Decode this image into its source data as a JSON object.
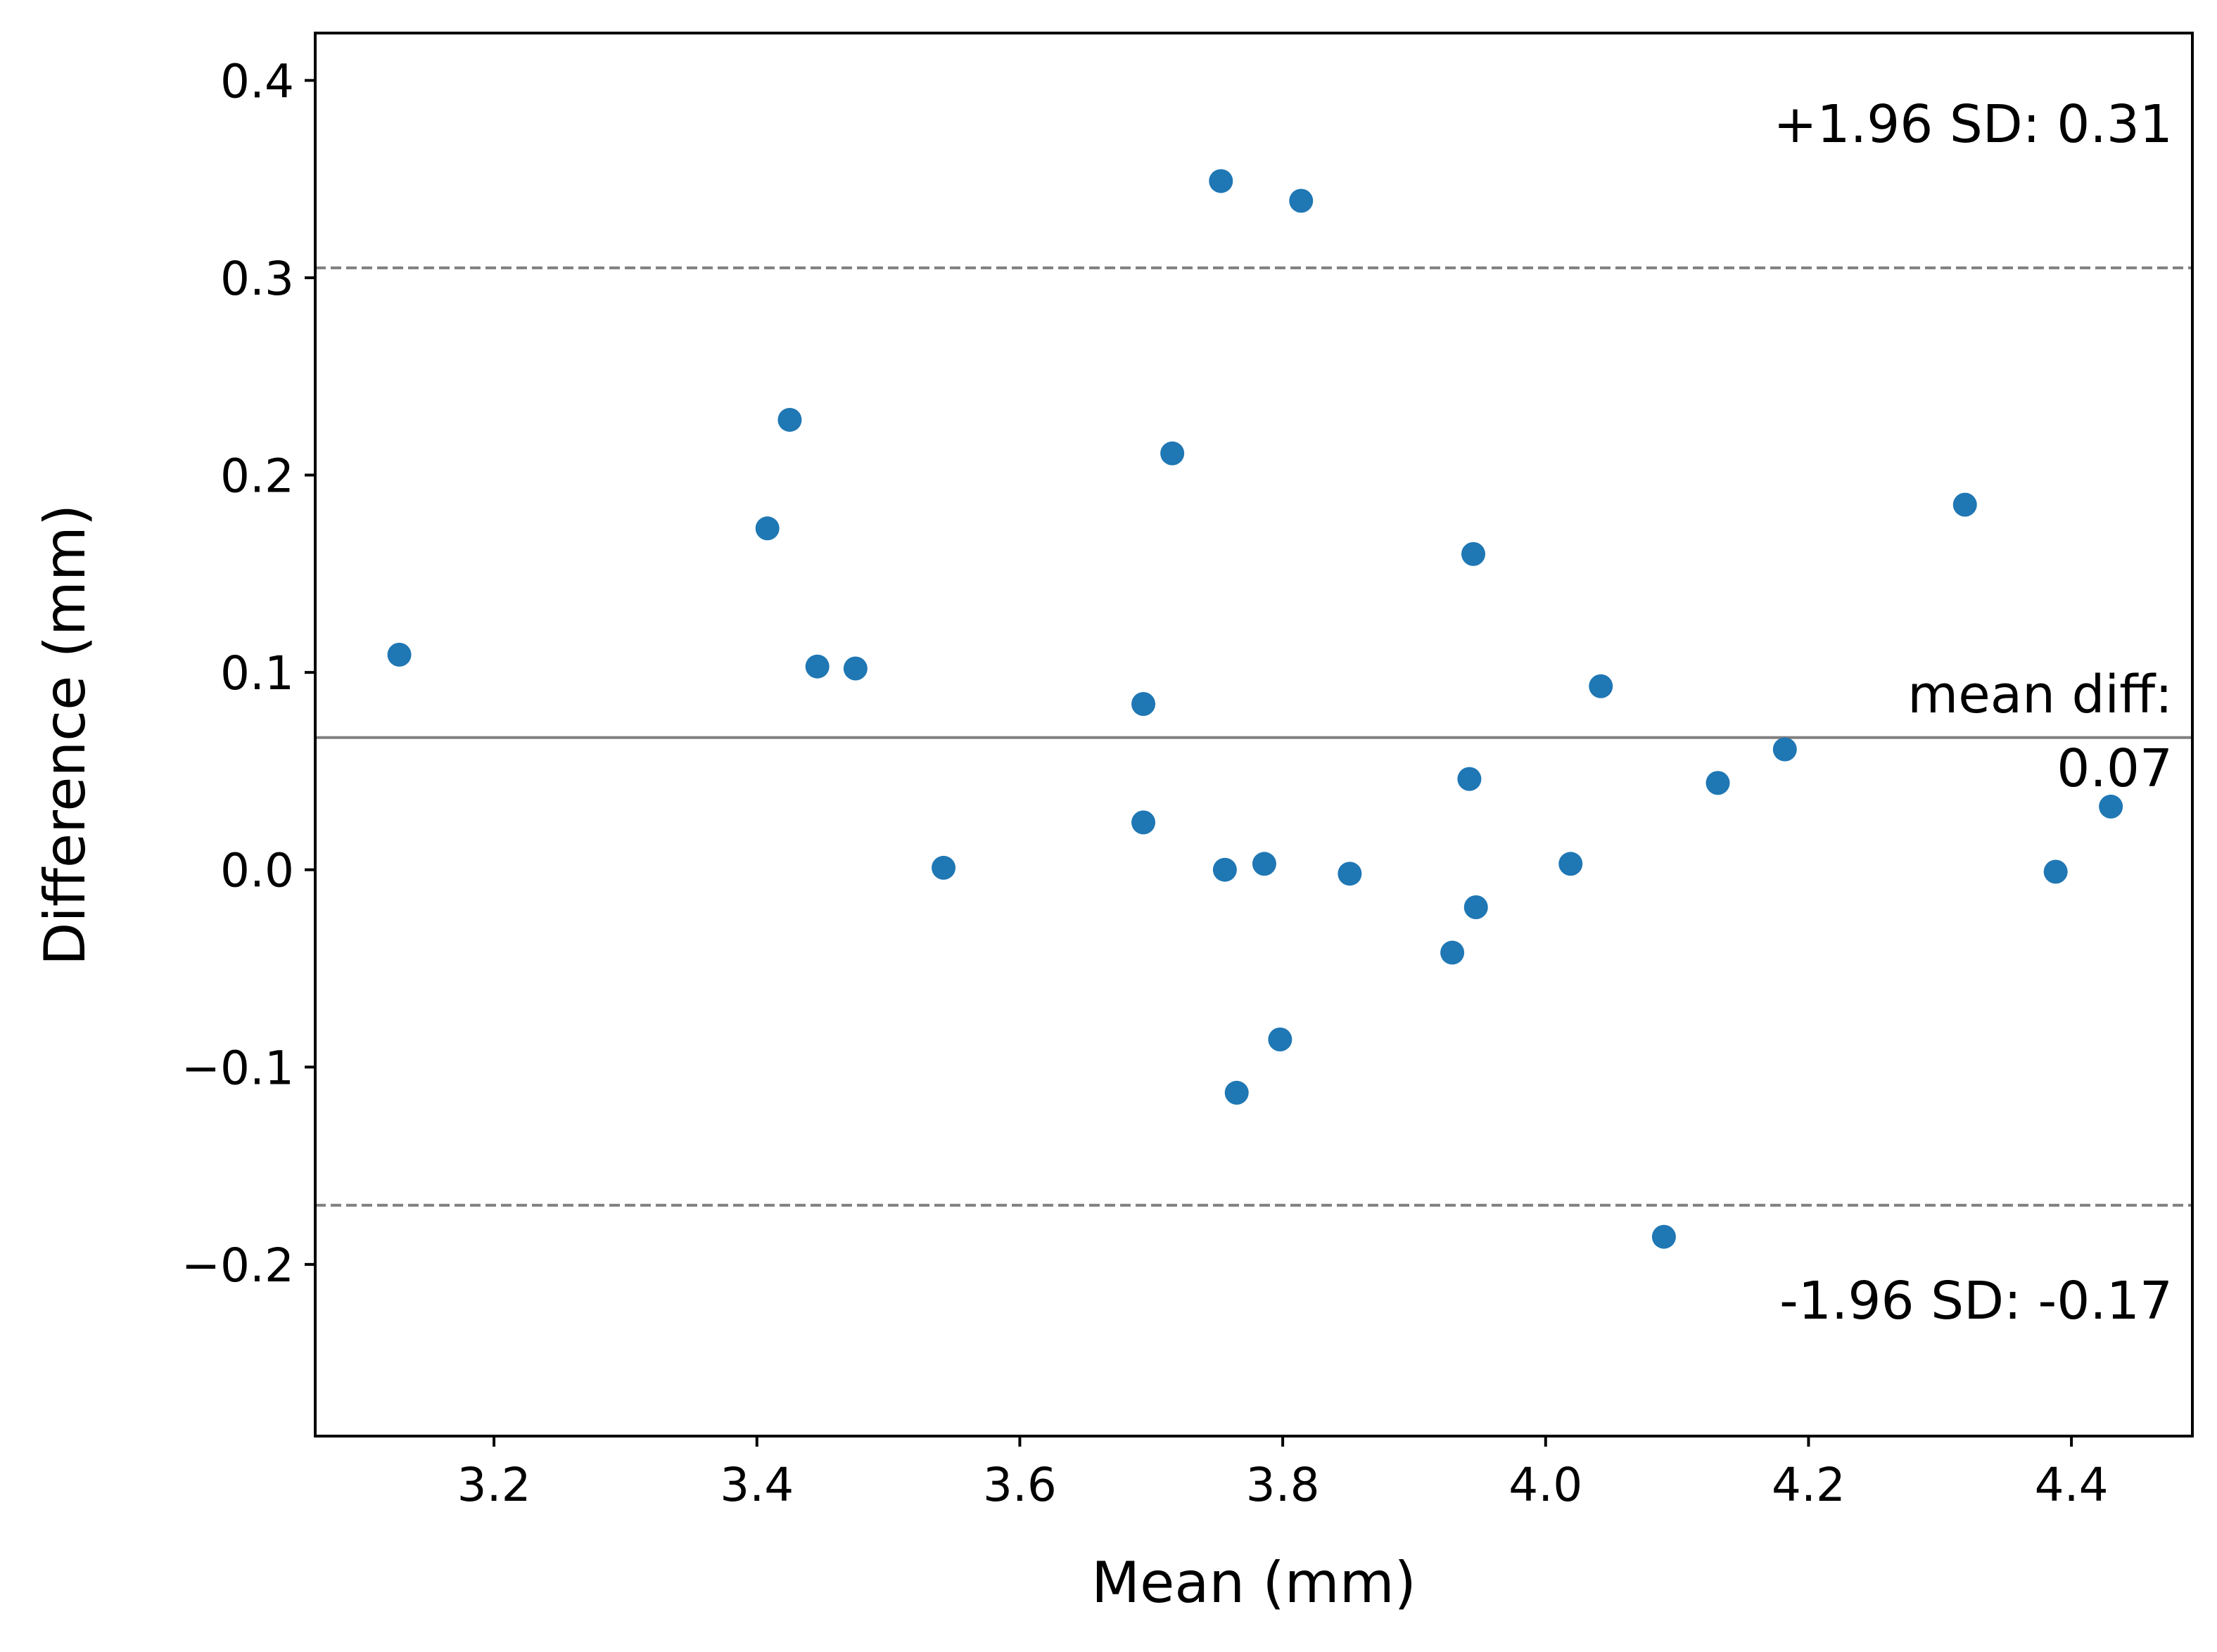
{
  "chart_data": {
    "type": "scatter",
    "title": "",
    "xlabel": "Mean (mm)",
    "ylabel": "Difference (mm)",
    "xlim": [
      3.064,
      4.492
    ],
    "ylim": [
      -0.287,
      0.424
    ],
    "grid": false,
    "xticks": [
      {
        "value": 3.2,
        "label": "3.2"
      },
      {
        "value": 3.4,
        "label": "3.4"
      },
      {
        "value": 3.6,
        "label": "3.6"
      },
      {
        "value": 3.8,
        "label": "3.8"
      },
      {
        "value": 4.0,
        "label": "4.0"
      },
      {
        "value": 4.2,
        "label": "4.2"
      },
      {
        "value": 4.4,
        "label": "4.4"
      }
    ],
    "yticks": [
      {
        "value": -0.2,
        "label": "−0.2"
      },
      {
        "value": -0.1,
        "label": "−0.1"
      },
      {
        "value": 0.0,
        "label": "0.0"
      },
      {
        "value": 0.1,
        "label": "0.1"
      },
      {
        "value": 0.2,
        "label": "0.2"
      },
      {
        "value": 0.3,
        "label": "0.3"
      },
      {
        "value": 0.4,
        "label": "0.4"
      }
    ],
    "reference_lines": [
      {
        "name": "upper-limit",
        "value": 0.305,
        "style": "dashed",
        "color": "#808080"
      },
      {
        "name": "mean-diff",
        "value": 0.067,
        "style": "solid",
        "color": "#808080"
      },
      {
        "name": "lower-limit",
        "value": -0.17,
        "style": "dashed",
        "color": "#808080"
      }
    ],
    "annotations": {
      "upper": "+1.96 SD: 0.31",
      "mean_line1": "mean diff:",
      "mean_line2": "0.07",
      "lower": "-1.96 SD: -0.17"
    },
    "point_color": "#1f77b4",
    "points": [
      {
        "x": 3.128,
        "y": 0.109
      },
      {
        "x": 3.408,
        "y": 0.173
      },
      {
        "x": 3.425,
        "y": 0.228
      },
      {
        "x": 3.446,
        "y": 0.103
      },
      {
        "x": 3.475,
        "y": 0.102
      },
      {
        "x": 3.542,
        "y": 0.001
      },
      {
        "x": 3.694,
        "y": 0.084
      },
      {
        "x": 3.694,
        "y": 0.024
      },
      {
        "x": 3.716,
        "y": 0.211
      },
      {
        "x": 3.753,
        "y": 0.349
      },
      {
        "x": 3.756,
        "y": 0.0
      },
      {
        "x": 3.765,
        "y": -0.113
      },
      {
        "x": 3.786,
        "y": 0.003
      },
      {
        "x": 3.798,
        "y": -0.086
      },
      {
        "x": 3.814,
        "y": 0.339
      },
      {
        "x": 3.851,
        "y": -0.002
      },
      {
        "x": 3.929,
        "y": -0.042
      },
      {
        "x": 3.942,
        "y": 0.046
      },
      {
        "x": 3.945,
        "y": 0.16
      },
      {
        "x": 3.947,
        "y": -0.019
      },
      {
        "x": 4.019,
        "y": 0.003
      },
      {
        "x": 4.042,
        "y": 0.093
      },
      {
        "x": 4.09,
        "y": -0.186
      },
      {
        "x": 4.131,
        "y": 0.044
      },
      {
        "x": 4.182,
        "y": 0.061
      },
      {
        "x": 4.319,
        "y": 0.185
      },
      {
        "x": 4.388,
        "y": -0.001
      },
      {
        "x": 4.43,
        "y": 0.032
      }
    ]
  }
}
